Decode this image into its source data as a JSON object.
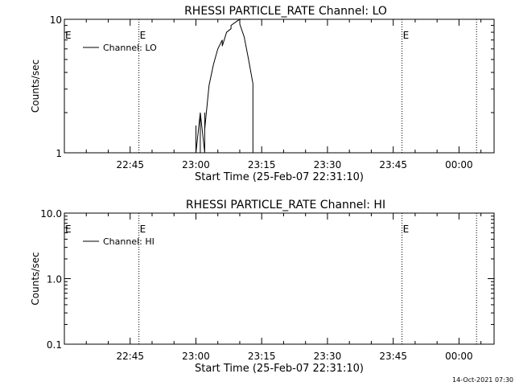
{
  "footer": {
    "timestamp": "14-Oct-2021 07:30"
  },
  "chart_data": [
    {
      "type": "line",
      "title": "RHESSI PARTICLE_RATE Channel: LO",
      "xlabel": "Start Time (25-Feb-07 22:31:10)",
      "ylabel": "Counts/sec",
      "yscale": "log",
      "x_ticks": [
        "22:45",
        "23:00",
        "23:15",
        "23:30",
        "23:45",
        "00:00"
      ],
      "y_ticks": [
        "1",
        "10"
      ],
      "ylim": [
        1,
        10
      ],
      "legend": {
        "entries": [
          "Channel: LO"
        ],
        "position": "top-left"
      },
      "event_markers": [
        {
          "time": "22:47",
          "label": "E"
        },
        {
          "time": "23:47",
          "label": "E"
        },
        {
          "time": "00:04",
          "label": ""
        }
      ],
      "series": [
        {
          "name": "Channel: LO",
          "points": [
            [
              "23:00",
              1
            ],
            [
              "23:00",
              1.6
            ],
            [
              "23:00",
              1
            ],
            [
              "23:01",
              2.0
            ],
            [
              "23:01",
              1
            ],
            [
              "23:01",
              2.0
            ],
            [
              "23:02",
              1
            ],
            [
              "23:02",
              2.0
            ],
            [
              "23:02",
              1.5
            ],
            [
              "23:03",
              3.2
            ],
            [
              "23:04",
              4.6
            ],
            [
              "23:05",
              6.0
            ],
            [
              "23:06",
              7.0
            ],
            [
              "23:06",
              6.3
            ],
            [
              "23:07",
              8.0
            ],
            [
              "23:08",
              8.5
            ],
            [
              "23:08",
              9.0
            ],
            [
              "23:09",
              9.5
            ],
            [
              "23:10",
              10.0
            ],
            [
              "23:10",
              9.2
            ],
            [
              "23:11",
              7.4
            ],
            [
              "23:12",
              5.0
            ],
            [
              "23:13",
              3.3
            ],
            [
              "23:13",
              2.4
            ],
            [
              "23:13",
              1
            ]
          ]
        }
      ]
    },
    {
      "type": "line",
      "title": "RHESSI PARTICLE_RATE Channel: HI",
      "xlabel": "Start Time (25-Feb-07 22:31:10)",
      "ylabel": "Counts/sec",
      "yscale": "log",
      "x_ticks": [
        "22:45",
        "23:00",
        "23:15",
        "23:30",
        "23:45",
        "00:00"
      ],
      "y_ticks": [
        "0.1",
        "1.0",
        "10.0"
      ],
      "ylim": [
        0.1,
        10
      ],
      "legend": {
        "entries": [
          "Channel: HI"
        ],
        "position": "top-left"
      },
      "event_markers": [
        {
          "time": "22:47",
          "label": "E"
        },
        {
          "time": "23:47",
          "label": "E"
        },
        {
          "time": "00:04",
          "label": ""
        }
      ],
      "series": [
        {
          "name": "Channel: HI",
          "points": []
        }
      ]
    }
  ]
}
